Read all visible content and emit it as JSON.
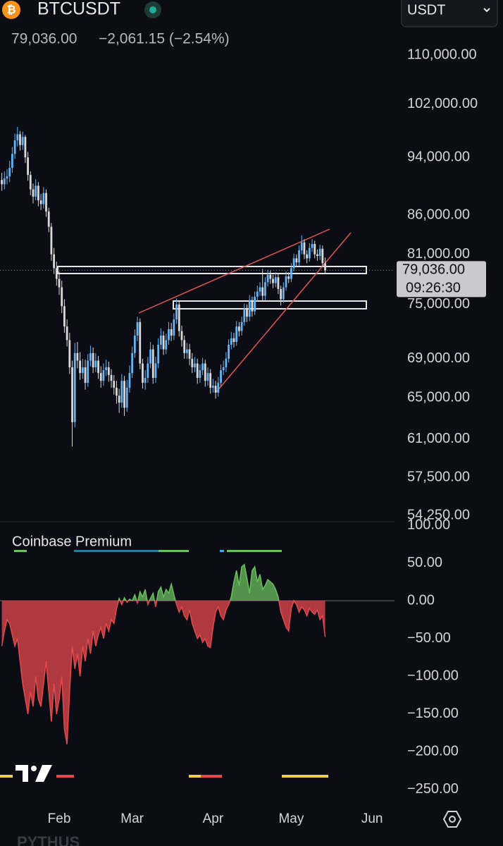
{
  "header": {
    "symbol": "BTCUSDT",
    "currency": "USDT",
    "last": "79,036.00",
    "change": "−2,061.15 (−2.54%)"
  },
  "footer": "PYTHUS",
  "chart_data": [
    {
      "type": "candlestick",
      "log_scale": true,
      "up_color": "#64b5f6",
      "down_color": "#d9d9d9",
      "countdown": "09:26:30",
      "xlim": [
        8.3,
        159.6
      ],
      "xticks": [
        {
          "value": 31,
          "label": "Feb"
        },
        {
          "value": 59,
          "label": "Mar"
        },
        {
          "value": 90,
          "label": "Apr"
        },
        {
          "value": 120,
          "label": "May"
        },
        {
          "value": 151,
          "label": "Jun"
        }
      ],
      "ylim": [
        53725,
        119700
      ],
      "yticks": [
        {
          "value": 110000,
          "label": "110,000.00"
        },
        {
          "value": 102000,
          "label": "102,000.00"
        },
        {
          "value": 94000,
          "label": "94,000.00"
        },
        {
          "value": 86000,
          "label": "86,000.00"
        },
        {
          "value": 81000,
          "label": "81,000.00"
        },
        {
          "value": 75000,
          "label": "75,000.00"
        },
        {
          "value": 69000,
          "label": "69,000.00"
        },
        {
          "value": 65000,
          "label": "65,000.00"
        },
        {
          "value": 61000,
          "label": "61,000.00"
        },
        {
          "value": 57500,
          "label": "57,500.00"
        },
        {
          "value": 54250,
          "label": "54,250.00"
        }
      ],
      "x": [
        9,
        10,
        11,
        12,
        13,
        14,
        15,
        16,
        17,
        18,
        19,
        20,
        21,
        22,
        23,
        24,
        25,
        26,
        27,
        28,
        29,
        30,
        31,
        32,
        33,
        34,
        35,
        36,
        37,
        38,
        39,
        40,
        41,
        42,
        43,
        44,
        45,
        46,
        47,
        48,
        49,
        50,
        51,
        52,
        53,
        54,
        55,
        56,
        57,
        58,
        59,
        60,
        61,
        62,
        63,
        64,
        65,
        66,
        67,
        68,
        69,
        70,
        71,
        72,
        73,
        74,
        75,
        76,
        77,
        78,
        79,
        80,
        81,
        82,
        83,
        84,
        85,
        86,
        87,
        88,
        89,
        90,
        91,
        92,
        93,
        94,
        95,
        96,
        97,
        98,
        99,
        100,
        101,
        102,
        103,
        104,
        105,
        106,
        107,
        108,
        109,
        110,
        111,
        112,
        113,
        114,
        115,
        116,
        117,
        118,
        119,
        120,
        121,
        122,
        123,
        124,
        125,
        126,
        127,
        128,
        129,
        130,
        131,
        132,
        133
      ],
      "open": [
        90800,
        90200,
        91000,
        91300,
        92500,
        94500,
        96500,
        97400,
        95800,
        97000,
        94000,
        91500,
        89500,
        88500,
        90000,
        88000,
        87500,
        89000,
        86500,
        84500,
        81000,
        79300,
        78000,
        77000,
        74800,
        72500,
        71000,
        68100,
        62600,
        69600,
        68800,
        67500,
        68100,
        66500,
        68800,
        69600,
        68100,
        68800,
        67500,
        66700,
        67800,
        68100,
        67300,
        66700,
        66000,
        65200,
        64500,
        66700,
        64000,
        66000,
        67500,
        69600,
        71500,
        73000,
        68500,
        66500,
        67000,
        68500,
        70000,
        67000,
        68500,
        70500,
        71500,
        70000,
        71000,
        72200,
        71500,
        73300,
        75000,
        72000,
        71000,
        69600,
        70000,
        69000,
        68100,
        68500,
        67000,
        67800,
        68500,
        66700,
        67500,
        66000,
        66200,
        65500,
        66500,
        67800,
        68100,
        69000,
        70500,
        71200,
        70800,
        72500,
        72000,
        73000,
        74500,
        73600,
        75500,
        74200,
        75900,
        76500,
        77000,
        76000,
        77600,
        78500,
        78000,
        77500,
        78200,
        76800,
        75600,
        77000,
        78300,
        78000,
        79300,
        80500,
        80000,
        81500,
        82500,
        81000,
        80500,
        81800,
        82300,
        81000,
        80800,
        81700,
        79900
      ],
      "high": [
        91800,
        92000,
        92300,
        93500,
        95500,
        97500,
        98500,
        97900,
        97800,
        97300,
        94800,
        92000,
        90300,
        90900,
        90500,
        88900,
        89800,
        89500,
        87000,
        85000,
        81800,
        80100,
        78900,
        77800,
        75600,
        73300,
        71800,
        68800,
        70700,
        70800,
        69700,
        69000,
        68900,
        69500,
        70400,
        70200,
        69600,
        69300,
        68200,
        68500,
        68900,
        68700,
        67900,
        67300,
        66700,
        65900,
        67400,
        67200,
        66800,
        68300,
        70300,
        72200,
        73600,
        73400,
        69000,
        67800,
        69200,
        70800,
        70500,
        69200,
        71200,
        72300,
        72000,
        71700,
        73000,
        72900,
        74000,
        75700,
        75400,
        72600,
        71500,
        70700,
        70600,
        69600,
        69200,
        69000,
        68400,
        69100,
        68900,
        68100,
        67900,
        66900,
        66700,
        67100,
        68400,
        68800,
        69700,
        71100,
        71900,
        71800,
        73100,
        73000,
        73600,
        75100,
        75000,
        76100,
        75900,
        76500,
        77200,
        77600,
        79200,
        78200,
        79100,
        79000,
        78500,
        78800,
        78600,
        77200,
        77600,
        78900,
        78800,
        79900,
        81100,
        81000,
        82100,
        83400,
        82900,
        81500,
        82400,
        82900,
        82700,
        81600,
        82200,
        82100,
        80600
      ],
      "low": [
        89300,
        89500,
        90200,
        90500,
        91800,
        93800,
        95600,
        95000,
        95100,
        93200,
        90700,
        88700,
        87600,
        88000,
        87200,
        86700,
        86900,
        85800,
        83800,
        80200,
        78600,
        77200,
        76100,
        74000,
        71800,
        70300,
        67400,
        60300,
        62100,
        68000,
        66800,
        66900,
        65800,
        66100,
        68200,
        67500,
        67600,
        66900,
        66000,
        66200,
        67200,
        66600,
        66000,
        65300,
        64400,
        63500,
        64000,
        63200,
        63600,
        65500,
        67000,
        69100,
        70900,
        67900,
        65900,
        65800,
        66500,
        68000,
        66400,
        66500,
        68000,
        70000,
        69400,
        69500,
        70500,
        70900,
        71000,
        72800,
        71400,
        70300,
        69000,
        69000,
        68300,
        67500,
        67600,
        66400,
        66500,
        67300,
        66100,
        66200,
        65400,
        65500,
        64900,
        65100,
        66100,
        67300,
        67600,
        68600,
        70000,
        70200,
        70400,
        71400,
        71500,
        72600,
        73000,
        73100,
        73600,
        73800,
        75400,
        76000,
        75400,
        75500,
        77100,
        77400,
        76900,
        77000,
        76200,
        74900,
        75200,
        76600,
        77500,
        77600,
        78900,
        79400,
        79600,
        81000,
        80400,
        79900,
        80100,
        81300,
        80500,
        80200,
        80300,
        79400,
        78700
      ],
      "close": [
        90200,
        91000,
        91300,
        92500,
        94500,
        96500,
        97400,
        95800,
        97000,
        94000,
        91500,
        89500,
        88500,
        90000,
        88000,
        87500,
        89000,
        86500,
        84500,
        81000,
        79300,
        78000,
        77000,
        74800,
        72500,
        71000,
        68100,
        62600,
        69600,
        68800,
        67500,
        68100,
        66500,
        68800,
        69600,
        68100,
        68800,
        67500,
        66700,
        67800,
        68100,
        67300,
        66700,
        66000,
        65200,
        64500,
        66700,
        64000,
        66000,
        67500,
        69600,
        71500,
        73000,
        68500,
        66500,
        67000,
        68500,
        70000,
        67000,
        68500,
        70500,
        71500,
        70000,
        71000,
        72200,
        71500,
        73300,
        75000,
        72000,
        71000,
        69600,
        70000,
        69000,
        68100,
        68500,
        67000,
        67800,
        68500,
        66700,
        67500,
        66000,
        66200,
        65500,
        66500,
        67800,
        68100,
        69000,
        70500,
        71200,
        70800,
        72500,
        72000,
        73000,
        74500,
        73600,
        75500,
        74200,
        75900,
        76500,
        77000,
        76000,
        77600,
        78500,
        78000,
        77500,
        78200,
        76800,
        75600,
        77000,
        78300,
        78000,
        79300,
        80500,
        80000,
        81500,
        82500,
        81000,
        80500,
        81800,
        82300,
        81000,
        80800,
        81700,
        79900,
        79036
      ]
    },
    {
      "type": "area",
      "title": "Coinbase Premium",
      "positive_color": "#6abf5e",
      "negative_color": "#e5484d",
      "xlim": [
        8.3,
        159.6
      ],
      "ylim": [
        -268.7,
        104.7
      ],
      "yticks": [
        {
          "value": 100,
          "label": "100.00"
        },
        {
          "value": 50,
          "label": "50.00"
        },
        {
          "value": 0,
          "label": "0.00"
        },
        {
          "value": -50,
          "label": "−50.00"
        },
        {
          "value": -100,
          "label": "−100.00"
        },
        {
          "value": -150,
          "label": "−150.00"
        },
        {
          "value": -200,
          "label": "−200.00"
        },
        {
          "value": -250,
          "label": "−250.00"
        }
      ],
      "x": [
        9,
        10,
        11,
        12,
        13,
        14,
        15,
        16,
        17,
        18,
        19,
        20,
        21,
        22,
        23,
        24,
        25,
        26,
        27,
        28,
        29,
        30,
        31,
        32,
        33,
        34,
        35,
        36,
        37,
        38,
        39,
        40,
        41,
        42,
        43,
        44,
        45,
        46,
        47,
        48,
        49,
        50,
        51,
        52,
        53,
        54,
        55,
        56,
        57,
        58,
        59,
        60,
        61,
        62,
        63,
        64,
        65,
        66,
        67,
        68,
        69,
        70,
        71,
        72,
        73,
        74,
        75,
        76,
        77,
        78,
        79,
        80,
        81,
        82,
        83,
        84,
        85,
        86,
        87,
        88,
        89,
        90,
        91,
        92,
        93,
        94,
        95,
        96,
        97,
        98,
        99,
        100,
        101,
        102,
        103,
        104,
        105,
        106,
        107,
        108,
        109,
        110,
        111,
        112,
        113,
        114,
        115,
        116,
        117,
        118,
        119,
        120,
        121,
        122,
        123,
        124,
        125,
        126,
        127,
        128,
        129,
        130,
        131,
        132,
        133
      ],
      "values": [
        -60,
        -40,
        -25,
        -30,
        -45,
        -60,
        -50,
        -80,
        -110,
        -130,
        -150,
        -120,
        -140,
        -100,
        -130,
        -140,
        -110,
        -80,
        -120,
        -160,
        -110,
        -150,
        -130,
        -100,
        -170,
        -190,
        -120,
        -60,
        -90,
        -70,
        -100,
        -60,
        -80,
        -50,
        -70,
        -40,
        -60,
        -45,
        -35,
        -50,
        -30,
        -40,
        -25,
        -30,
        -10,
        3,
        -5,
        4,
        -2,
        2,
        0,
        8,
        -3,
        12,
        5,
        15,
        -5,
        3,
        10,
        -8,
        12,
        18,
        5,
        15,
        10,
        22,
        8,
        -5,
        -15,
        -8,
        -20,
        -25,
        -12,
        -30,
        -40,
        -50,
        -45,
        -55,
        -50,
        -60,
        -62,
        -35,
        -15,
        -8,
        -20,
        -25,
        -12,
        -5,
        5,
        25,
        40,
        20,
        45,
        48,
        30,
        10,
        40,
        45,
        25,
        35,
        15,
        20,
        28,
        25,
        22,
        15,
        5,
        -15,
        -25,
        -35,
        -40,
        -10,
        0,
        -5,
        -15,
        -8,
        -12,
        -20,
        -10,
        -15,
        -18,
        -12,
        -25,
        -20,
        -48
      ]
    }
  ]
}
